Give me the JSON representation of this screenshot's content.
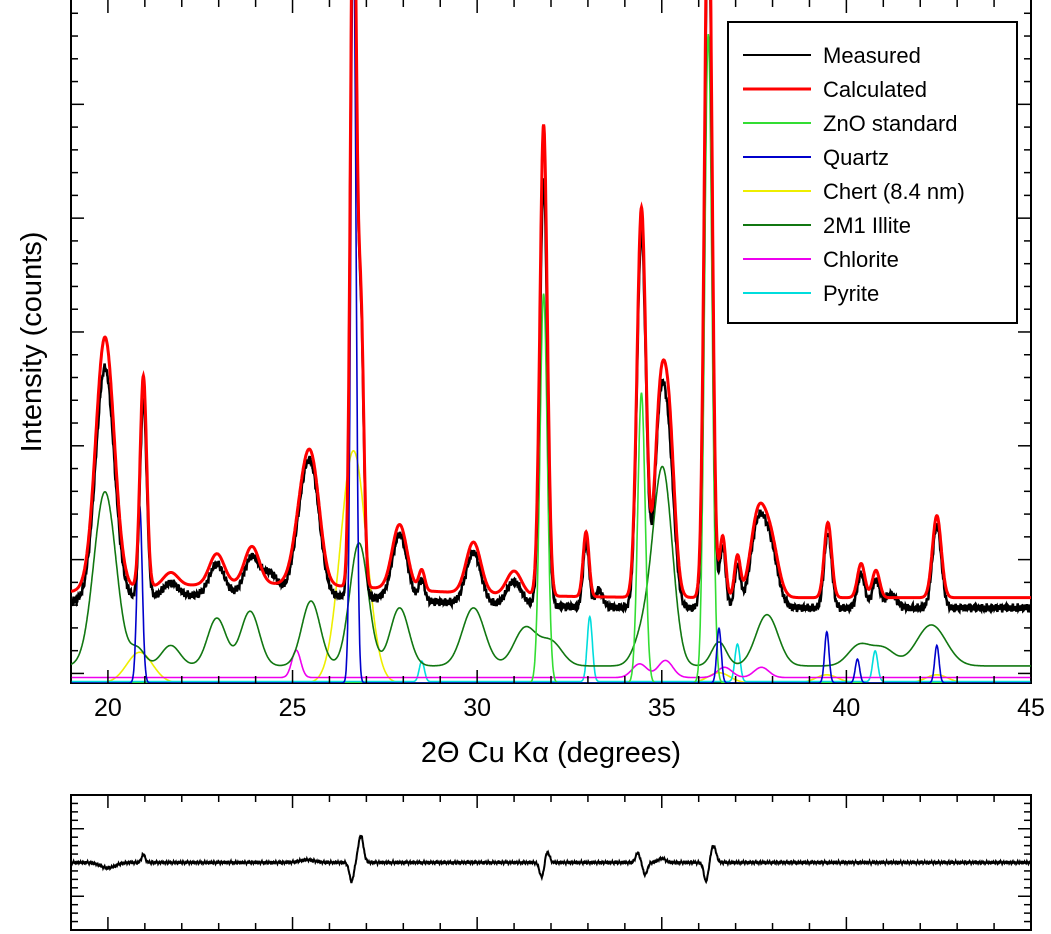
{
  "chart_data": [
    {
      "type": "line",
      "title": "",
      "xlabel": "2Θ Cu Kα (degrees)",
      "ylabel": "Intensity (counts)",
      "xlim": [
        19,
        45
      ],
      "ylim": [
        0,
        1000
      ],
      "x_ticks": [
        20,
        25,
        30,
        35,
        40,
        45
      ],
      "x_tick_labels": [
        "20",
        "25",
        "30",
        "35",
        "40",
        "45"
      ],
      "y_tick_labels_shown": false,
      "grid": false,
      "legend_position": "top-right",
      "background_height": 110,
      "series": [
        {
          "name": "Measured",
          "color": "#000000",
          "kind": "profile",
          "baseline": 110,
          "peaks": [
            [
              19.92,
              340,
              0.25
            ],
            [
              20.96,
              290,
              0.09
            ],
            [
              21.7,
              20,
              0.2
            ],
            [
              22.95,
              45,
              0.2
            ],
            [
              23.9,
              55,
              0.2
            ],
            [
              24.4,
              30,
              0.2
            ],
            [
              25.35,
              150,
              0.25
            ],
            [
              25.6,
              80,
              0.2
            ],
            [
              26.65,
              1100,
              0.08
            ],
            [
              26.85,
              400,
              0.08
            ],
            [
              27.9,
              95,
              0.2
            ],
            [
              28.5,
              30,
              0.08
            ],
            [
              29.9,
              75,
              0.2
            ],
            [
              31.0,
              35,
              0.2
            ],
            [
              31.8,
              625,
              0.1
            ],
            [
              32.95,
              95,
              0.08
            ],
            [
              33.3,
              25,
              0.1
            ],
            [
              34.45,
              550,
              0.12
            ],
            [
              34.95,
              260,
              0.15
            ],
            [
              35.2,
              200,
              0.15
            ],
            [
              36.26,
              1050,
              0.1
            ],
            [
              36.65,
              90,
              0.08
            ],
            [
              37.05,
              60,
              0.08
            ],
            [
              37.6,
              115,
              0.2
            ],
            [
              37.95,
              80,
              0.2
            ],
            [
              39.5,
              110,
              0.1
            ],
            [
              40.4,
              50,
              0.1
            ],
            [
              40.8,
              40,
              0.1
            ],
            [
              41.2,
              20,
              0.15
            ],
            [
              42.45,
              120,
              0.12
            ]
          ]
        },
        {
          "name": "Calculated",
          "color": "#ff0000",
          "kind": "profile",
          "baseline": 125,
          "peaks": [
            [
              19.92,
              370,
              0.25
            ],
            [
              20.96,
              310,
              0.09
            ],
            [
              21.7,
              20,
              0.2
            ],
            [
              22.95,
              45,
              0.2
            ],
            [
              23.9,
              55,
              0.2
            ],
            [
              25.35,
              150,
              0.25
            ],
            [
              25.6,
              80,
              0.2
            ],
            [
              26.65,
              1100,
              0.08
            ],
            [
              26.85,
              400,
              0.08
            ],
            [
              27.9,
              95,
              0.2
            ],
            [
              28.5,
              30,
              0.08
            ],
            [
              29.9,
              75,
              0.2
            ],
            [
              31.0,
              35,
              0.2
            ],
            [
              31.8,
              690,
              0.1
            ],
            [
              32.95,
              95,
              0.08
            ],
            [
              34.45,
              570,
              0.12
            ],
            [
              34.95,
              260,
              0.15
            ],
            [
              35.2,
              230,
              0.15
            ],
            [
              36.26,
              1100,
              0.1
            ],
            [
              36.65,
              90,
              0.08
            ],
            [
              37.05,
              60,
              0.08
            ],
            [
              37.6,
              115,
              0.2
            ],
            [
              37.95,
              80,
              0.2
            ],
            [
              39.5,
              110,
              0.1
            ],
            [
              40.4,
              50,
              0.1
            ],
            [
              40.8,
              40,
              0.1
            ],
            [
              42.45,
              120,
              0.12
            ]
          ]
        },
        {
          "name": "ZnO standard",
          "color": "#33dd33",
          "kind": "profile",
          "baseline": 0,
          "peaks": [
            [
              31.8,
              570,
              0.1
            ],
            [
              34.45,
              425,
              0.1
            ],
            [
              36.26,
              950,
              0.1
            ]
          ]
        },
        {
          "name": "Quartz",
          "color": "#0000cc",
          "kind": "profile",
          "baseline": 0,
          "peaks": [
            [
              20.86,
              260,
              0.07
            ],
            [
              26.65,
              1100,
              0.07
            ],
            [
              36.55,
              80,
              0.06
            ],
            [
              39.47,
              75,
              0.06
            ],
            [
              40.3,
              35,
              0.06
            ],
            [
              42.45,
              55,
              0.06
            ],
            [
              45.8,
              30,
              0.06
            ]
          ]
        },
        {
          "name": "Chert (8.4 nm)",
          "color": "#eeee00",
          "kind": "profile",
          "baseline": 0,
          "peaks": [
            [
              20.86,
              45,
              0.35
            ],
            [
              26.65,
              340,
              0.35
            ],
            [
              36.55,
              15,
              0.3
            ],
            [
              39.47,
              12,
              0.3
            ],
            [
              42.45,
              12,
              0.3
            ]
          ]
        },
        {
          "name": "2M1 Illite",
          "color": "#117711",
          "kind": "profile",
          "baseline": 25,
          "peaks": [
            [
              19.92,
              255,
              0.3
            ],
            [
              20.8,
              25,
              0.2
            ],
            [
              21.7,
              30,
              0.25
            ],
            [
              22.95,
              70,
              0.25
            ],
            [
              23.85,
              80,
              0.25
            ],
            [
              25.5,
              95,
              0.25
            ],
            [
              26.8,
              180,
              0.25
            ],
            [
              27.9,
              85,
              0.25
            ],
            [
              29.9,
              85,
              0.3
            ],
            [
              31.3,
              55,
              0.3
            ],
            [
              32.0,
              35,
              0.3
            ],
            [
              34.5,
              45,
              0.25
            ],
            [
              34.95,
              150,
              0.25
            ],
            [
              35.1,
              150,
              0.25
            ],
            [
              36.55,
              35,
              0.2
            ],
            [
              37.85,
              75,
              0.3
            ],
            [
              40.35,
              30,
              0.3
            ],
            [
              41.0,
              25,
              0.3
            ],
            [
              42.3,
              60,
              0.4
            ]
          ]
        },
        {
          "name": "Chlorite",
          "color": "#ee00ee",
          "kind": "profile",
          "baseline": 8,
          "peaks": [
            [
              25.1,
              40,
              0.12
            ],
            [
              34.4,
              20,
              0.2
            ],
            [
              35.1,
              25,
              0.2
            ],
            [
              36.7,
              15,
              0.2
            ],
            [
              37.7,
              15,
              0.2
            ]
          ]
        },
        {
          "name": "Pyrite",
          "color": "#00dddd",
          "kind": "profile",
          "baseline": 2,
          "peaks": [
            [
              28.5,
              30,
              0.07
            ],
            [
              33.05,
              95,
              0.07
            ],
            [
              37.05,
              55,
              0.07
            ],
            [
              40.78,
              45,
              0.07
            ]
          ]
        }
      ]
    },
    {
      "type": "line",
      "title": "",
      "xlabel": "",
      "ylabel": "",
      "xlim": [
        19,
        45
      ],
      "ylim": [
        -100,
        100
      ],
      "grid": false,
      "series": [
        {
          "color": "#000000",
          "kind": "difference",
          "baseline": 0,
          "features": [
            [
              20.0,
              -8,
              0.2
            ],
            [
              20.96,
              12,
              0.05
            ],
            [
              26.6,
              -28,
              0.06
            ],
            [
              26.85,
              40,
              0.07
            ],
            [
              31.75,
              -22,
              0.06
            ],
            [
              31.9,
              16,
              0.06
            ],
            [
              34.35,
              14,
              0.06
            ],
            [
              34.55,
              -18,
              0.06
            ],
            [
              36.2,
              -28,
              0.06
            ],
            [
              36.4,
              25,
              0.07
            ],
            [
              35.0,
              6,
              0.1
            ],
            [
              25.4,
              4,
              0.2
            ]
          ]
        }
      ]
    }
  ]
}
